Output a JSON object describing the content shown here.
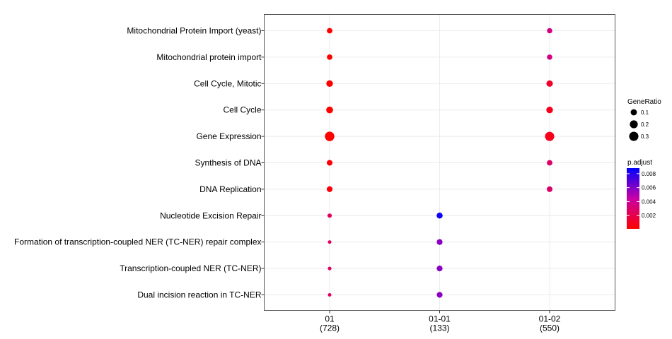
{
  "chart_data": {
    "type": "scatter",
    "subtype": "dot-plot",
    "x_categories": [
      {
        "label": "01",
        "count": "(728)"
      },
      {
        "label": "01-01",
        "count": "(133)"
      },
      {
        "label": "01-02",
        "count": "(550)"
      }
    ],
    "y_categories": [
      "Mitochondrial Protein Import (yeast)",
      "Mitochondrial protein import",
      "Cell Cycle, Mitotic",
      "Cell Cycle",
      "Gene Expression",
      "Synthesis of DNA",
      "DNA Replication",
      "Nucleotide Excision Repair",
      "Formation of transcription-coupled NER (TC-NER) repair complex",
      "Transcription-coupled NER (TC-NER)",
      "Dual incision reaction in TC-NER"
    ],
    "points": [
      {
        "x": "01",
        "y": "Mitochondrial Protein Import (yeast)",
        "gene_ratio": 0.07,
        "p_adjust": 0.0001
      },
      {
        "x": "01",
        "y": "Mitochondrial protein import",
        "gene_ratio": 0.065,
        "p_adjust": 0.0001
      },
      {
        "x": "01",
        "y": "Cell Cycle, Mitotic",
        "gene_ratio": 0.12,
        "p_adjust": 0.0001
      },
      {
        "x": "01",
        "y": "Cell Cycle",
        "gene_ratio": 0.13,
        "p_adjust": 0.0001
      },
      {
        "x": "01",
        "y": "Gene Expression",
        "gene_ratio": 0.32,
        "p_adjust": 0.0001
      },
      {
        "x": "01",
        "y": "Synthesis of DNA",
        "gene_ratio": 0.075,
        "p_adjust": 0.0003
      },
      {
        "x": "01",
        "y": "DNA Replication",
        "gene_ratio": 0.08,
        "p_adjust": 0.0003
      },
      {
        "x": "01",
        "y": "Nucleotide Excision Repair",
        "gene_ratio": 0.03,
        "p_adjust": 0.0025
      },
      {
        "x": "01",
        "y": "Formation of transcription-coupled NER (TC-NER) repair complex",
        "gene_ratio": 0.012,
        "p_adjust": 0.0025
      },
      {
        "x": "01",
        "y": "Transcription-coupled NER (TC-NER)",
        "gene_ratio": 0.014,
        "p_adjust": 0.0025
      },
      {
        "x": "01",
        "y": "Dual incision reaction in TC-NER",
        "gene_ratio": 0.012,
        "p_adjust": 0.0025
      },
      {
        "x": "01-01",
        "y": "Nucleotide Excision Repair",
        "gene_ratio": 0.09,
        "p_adjust": 0.0085
      },
      {
        "x": "01-01",
        "y": "Formation of transcription-coupled NER (TC-NER) repair complex",
        "gene_ratio": 0.08,
        "p_adjust": 0.0058
      },
      {
        "x": "01-01",
        "y": "Transcription-coupled NER (TC-NER)",
        "gene_ratio": 0.08,
        "p_adjust": 0.0058
      },
      {
        "x": "01-01",
        "y": "Dual incision reaction in TC-NER",
        "gene_ratio": 0.08,
        "p_adjust": 0.0058
      },
      {
        "x": "01-02",
        "y": "Mitochondrial Protein Import (yeast)",
        "gene_ratio": 0.06,
        "p_adjust": 0.0035
      },
      {
        "x": "01-02",
        "y": "Mitochondrial protein import",
        "gene_ratio": 0.06,
        "p_adjust": 0.0035
      },
      {
        "x": "01-02",
        "y": "Cell Cycle, Mitotic",
        "gene_ratio": 0.11,
        "p_adjust": 0.0012
      },
      {
        "x": "01-02",
        "y": "Cell Cycle",
        "gene_ratio": 0.12,
        "p_adjust": 0.0008
      },
      {
        "x": "01-02",
        "y": "Gene Expression",
        "gene_ratio": 0.3,
        "p_adjust": 0.0008
      },
      {
        "x": "01-02",
        "y": "Synthesis of DNA",
        "gene_ratio": 0.07,
        "p_adjust": 0.0028
      },
      {
        "x": "01-02",
        "y": "DNA Replication",
        "gene_ratio": 0.075,
        "p_adjust": 0.0028
      }
    ],
    "legend_size": {
      "title": "GeneRatio",
      "values": [
        0.1,
        0.2,
        0.3
      ],
      "labels": [
        "0.1",
        "0.2",
        "0.3"
      ]
    },
    "legend_color": {
      "title": "p.adjust",
      "ticks": [
        0.002,
        0.004,
        0.006,
        0.008
      ],
      "tick_labels": [
        "0.002",
        "0.004",
        "0.006",
        "0.008"
      ],
      "range": [
        0.0001,
        0.0088
      ],
      "low_color": "#ff0000",
      "high_color": "#0000ff"
    },
    "grid": true,
    "legend_position": "right",
    "panel_border": "#555555",
    "grid_color": "#ebebeb"
  }
}
